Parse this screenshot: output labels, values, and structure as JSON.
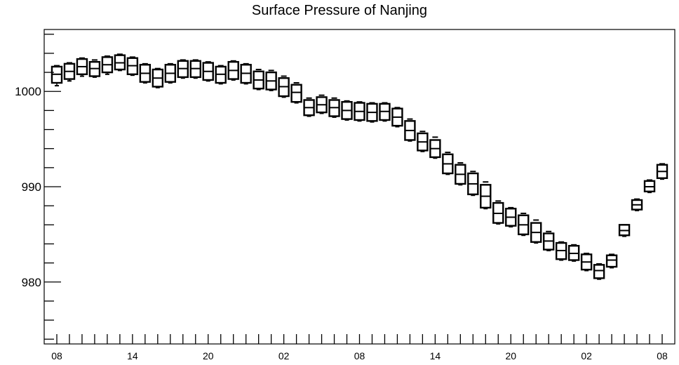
{
  "chart_data": {
    "type": "box",
    "title": "Surface Pressure of Nanjing",
    "xlabel": "",
    "ylabel": "",
    "ylim": [
      973.5,
      1006.5
    ],
    "y_ticks": [
      980,
      990,
      1000
    ],
    "x_ticks": [
      "08",
      "14",
      "20",
      "02",
      "08",
      "14",
      "20",
      "02",
      "08"
    ],
    "x_range_hours": [
      0,
      48
    ],
    "grid": false,
    "series": [
      {
        "values": [
          {
            "t": 0,
            "q1": 1000.9,
            "median": 1001.8,
            "q3": 1002.6,
            "min": 1000.6,
            "max": 1002.7
          },
          {
            "t": 1,
            "q1": 1001.3,
            "median": 1002.1,
            "q3": 1002.9,
            "min": 1001.1,
            "max": 1003.0
          },
          {
            "t": 2,
            "q1": 1001.8,
            "median": 1002.6,
            "q3": 1003.4,
            "min": 1001.6,
            "max": 1003.5
          },
          {
            "t": 3,
            "q1": 1001.6,
            "median": 1002.4,
            "q3": 1003.1,
            "min": 1001.5,
            "max": 1003.3
          },
          {
            "t": 4,
            "q1": 1002.0,
            "median": 1002.8,
            "q3": 1003.6,
            "min": 1001.8,
            "max": 1003.7
          },
          {
            "t": 5,
            "q1": 1002.3,
            "median": 1003.0,
            "q3": 1003.8,
            "min": 1002.2,
            "max": 1003.9
          },
          {
            "t": 6,
            "q1": 1001.8,
            "median": 1002.7,
            "q3": 1003.5,
            "min": 1001.7,
            "max": 1003.6
          },
          {
            "t": 7,
            "q1": 1001.0,
            "median": 1001.9,
            "q3": 1002.8,
            "min": 1000.9,
            "max": 1002.9
          },
          {
            "t": 8,
            "q1": 1000.5,
            "median": 1001.4,
            "q3": 1002.3,
            "min": 1000.4,
            "max": 1002.4
          },
          {
            "t": 9,
            "q1": 1001.0,
            "median": 1001.9,
            "q3": 1002.8,
            "min": 1000.9,
            "max": 1002.9
          },
          {
            "t": 10,
            "q1": 1001.5,
            "median": 1002.4,
            "q3": 1003.2,
            "min": 1001.4,
            "max": 1003.3
          },
          {
            "t": 11,
            "q1": 1001.5,
            "median": 1002.4,
            "q3": 1003.2,
            "min": 1001.4,
            "max": 1003.3
          },
          {
            "t": 12,
            "q1": 1001.2,
            "median": 1002.1,
            "q3": 1003.0,
            "min": 1001.1,
            "max": 1003.1
          },
          {
            "t": 13,
            "q1": 1000.9,
            "median": 1001.8,
            "q3": 1002.6,
            "min": 1000.8,
            "max": 1002.7
          },
          {
            "t": 14,
            "q1": 1001.3,
            "median": 1002.2,
            "q3": 1003.1,
            "min": 1001.2,
            "max": 1003.2
          },
          {
            "t": 15,
            "q1": 1000.9,
            "median": 1001.9,
            "q3": 1002.8,
            "min": 1000.8,
            "max": 1002.9
          },
          {
            "t": 16,
            "q1": 1000.3,
            "median": 1001.2,
            "q3": 1002.1,
            "min": 1000.2,
            "max": 1002.3
          },
          {
            "t": 17,
            "q1": 1000.2,
            "median": 1001.1,
            "q3": 1002.0,
            "min": 1000.1,
            "max": 1002.2
          },
          {
            "t": 18,
            "q1": 999.5,
            "median": 1000.5,
            "q3": 1001.4,
            "min": 999.4,
            "max": 1001.6
          },
          {
            "t": 19,
            "q1": 998.9,
            "median": 999.9,
            "q3": 1000.7,
            "min": 998.8,
            "max": 1000.9
          },
          {
            "t": 20,
            "q1": 997.5,
            "median": 998.3,
            "q3": 999.1,
            "min": 997.4,
            "max": 999.3
          },
          {
            "t": 21,
            "q1": 997.8,
            "median": 998.6,
            "q3": 999.4,
            "min": 997.7,
            "max": 999.6
          },
          {
            "t": 22,
            "q1": 997.4,
            "median": 998.3,
            "q3": 999.1,
            "min": 997.3,
            "max": 999.3
          },
          {
            "t": 23,
            "q1": 997.1,
            "median": 998.0,
            "q3": 998.9,
            "min": 997.0,
            "max": 999.0
          },
          {
            "t": 24,
            "q1": 997.0,
            "median": 997.9,
            "q3": 998.8,
            "min": 996.9,
            "max": 998.9
          },
          {
            "t": 25,
            "q1": 996.9,
            "median": 997.8,
            "q3": 998.7,
            "min": 996.8,
            "max": 998.8
          },
          {
            "t": 26,
            "q1": 997.0,
            "median": 997.9,
            "q3": 998.7,
            "min": 996.9,
            "max": 998.8
          },
          {
            "t": 27,
            "q1": 996.4,
            "median": 997.3,
            "q3": 998.2,
            "min": 996.3,
            "max": 998.3
          },
          {
            "t": 28,
            "q1": 994.9,
            "median": 995.9,
            "q3": 996.9,
            "min": 994.8,
            "max": 997.1
          },
          {
            "t": 29,
            "q1": 993.8,
            "median": 994.7,
            "q3": 995.6,
            "min": 993.7,
            "max": 995.8
          },
          {
            "t": 30,
            "q1": 993.1,
            "median": 994.0,
            "q3": 994.9,
            "min": 993.0,
            "max": 995.2
          },
          {
            "t": 31,
            "q1": 991.4,
            "median": 992.4,
            "q3": 993.4,
            "min": 991.3,
            "max": 993.6
          },
          {
            "t": 32,
            "q1": 990.3,
            "median": 991.3,
            "q3": 992.3,
            "min": 990.2,
            "max": 992.5
          },
          {
            "t": 33,
            "q1": 989.2,
            "median": 990.3,
            "q3": 991.4,
            "min": 989.1,
            "max": 991.6
          },
          {
            "t": 34,
            "q1": 987.8,
            "median": 989.0,
            "q3": 990.2,
            "min": 987.7,
            "max": 990.5
          },
          {
            "t": 35,
            "q1": 986.2,
            "median": 987.2,
            "q3": 988.3,
            "min": 986.1,
            "max": 988.5
          },
          {
            "t": 36,
            "q1": 985.9,
            "median": 986.8,
            "q3": 987.7,
            "min": 985.8,
            "max": 987.8
          },
          {
            "t": 37,
            "q1": 985.0,
            "median": 986.0,
            "q3": 987.0,
            "min": 984.9,
            "max": 987.2
          },
          {
            "t": 38,
            "q1": 984.2,
            "median": 985.2,
            "q3": 986.2,
            "min": 984.1,
            "max": 986.5
          },
          {
            "t": 39,
            "q1": 983.4,
            "median": 984.3,
            "q3": 985.1,
            "min": 983.3,
            "max": 985.3
          },
          {
            "t": 40,
            "q1": 982.4,
            "median": 983.3,
            "q3": 984.1,
            "min": 982.3,
            "max": 984.2
          },
          {
            "t": 41,
            "q1": 982.3,
            "median": 983.0,
            "q3": 983.8,
            "min": 982.2,
            "max": 983.9
          },
          {
            "t": 42,
            "q1": 981.3,
            "median": 982.1,
            "q3": 982.9,
            "min": 981.2,
            "max": 983.0
          },
          {
            "t": 43,
            "q1": 980.4,
            "median": 981.2,
            "q3": 981.8,
            "min": 980.3,
            "max": 981.9
          },
          {
            "t": 44,
            "q1": 981.6,
            "median": 982.3,
            "q3": 982.8,
            "min": 981.5,
            "max": 982.9
          },
          {
            "t": 45,
            "q1": 984.9,
            "median": 985.4,
            "q3": 986.0,
            "min": 984.8,
            "max": 986.0
          },
          {
            "t": 46,
            "q1": 987.6,
            "median": 988.1,
            "q3": 988.6,
            "min": 987.5,
            "max": 988.7
          },
          {
            "t": 47,
            "q1": 989.5,
            "median": 990.0,
            "q3": 990.6,
            "min": 989.4,
            "max": 990.7
          },
          {
            "t": 48,
            "q1": 990.9,
            "median": 991.6,
            "q3": 992.3,
            "min": 990.8,
            "max": 992.4
          }
        ]
      }
    ]
  }
}
